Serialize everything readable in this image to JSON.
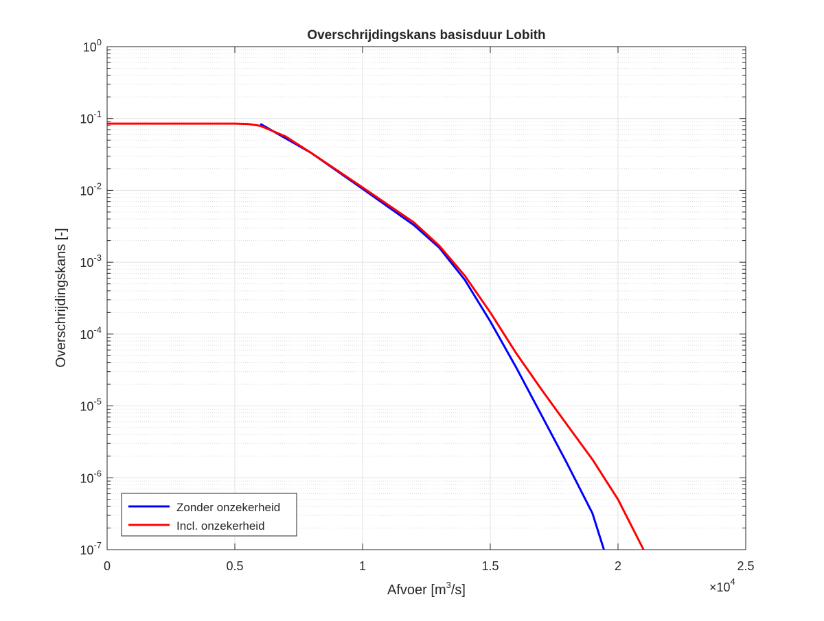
{
  "chart_data": {
    "type": "line",
    "title": "Overschrijdingskans basisduur Lobith",
    "xlabel": {
      "pre": "Afvoer [m",
      "sup": "3",
      "post": "/s]"
    },
    "ylabel": "Overschrijdingskans [-]",
    "x_multiplier": {
      "base": "×10",
      "exp": "4"
    },
    "xlim": [
      0,
      25000
    ],
    "ylim": [
      1e-07,
      1
    ],
    "yscale": "log",
    "grid": true,
    "minor_grid": true,
    "legend_position": "bottom-left",
    "xticks": [
      {
        "value": 0,
        "label": "0"
      },
      {
        "value": 5000,
        "label": "0.5"
      },
      {
        "value": 10000,
        "label": "1"
      },
      {
        "value": 15000,
        "label": "1.5"
      },
      {
        "value": 20000,
        "label": "2"
      },
      {
        "value": 25000,
        "label": "2.5"
      }
    ],
    "yticks": [
      {
        "value": 1,
        "base": "10",
        "exp": "0"
      },
      {
        "value": 0.1,
        "base": "10",
        "exp": "-1"
      },
      {
        "value": 0.01,
        "base": "10",
        "exp": "-2"
      },
      {
        "value": 0.001,
        "base": "10",
        "exp": "-3"
      },
      {
        "value": 0.0001,
        "base": "10",
        "exp": "-4"
      },
      {
        "value": 1e-05,
        "base": "10",
        "exp": "-5"
      },
      {
        "value": 1e-06,
        "base": "10",
        "exp": "-6"
      },
      {
        "value": 1e-07,
        "base": "10",
        "exp": "-7"
      }
    ],
    "series": [
      {
        "name": "Zonder onzekerheid",
        "color": "#0000ff",
        "x": [
          6000,
          8000,
          10000,
          12000,
          13000,
          14000,
          15000,
          16000,
          17000,
          18000,
          19000,
          19450
        ],
        "y": [
          0.084,
          0.033,
          0.0105,
          0.0033,
          0.0016,
          0.00057,
          0.00015,
          3.5e-05,
          7.5e-06,
          1.6e-06,
          3.2e-07,
          1e-07
        ]
      },
      {
        "name": "Incl. onzekerheid",
        "color": "#ff0000",
        "x": [
          0,
          3000,
          5000,
          5500,
          6000,
          7000,
          8000,
          10000,
          12000,
          13000,
          14000,
          15000,
          16000,
          17000,
          18000,
          19000,
          20000,
          21000
        ],
        "y": [
          0.085,
          0.085,
          0.085,
          0.084,
          0.079,
          0.056,
          0.033,
          0.011,
          0.0036,
          0.0017,
          0.00065,
          0.0002,
          5.5e-05,
          1.7e-05,
          5.5e-06,
          1.8e-06,
          5e-07,
          1e-07
        ]
      }
    ]
  }
}
